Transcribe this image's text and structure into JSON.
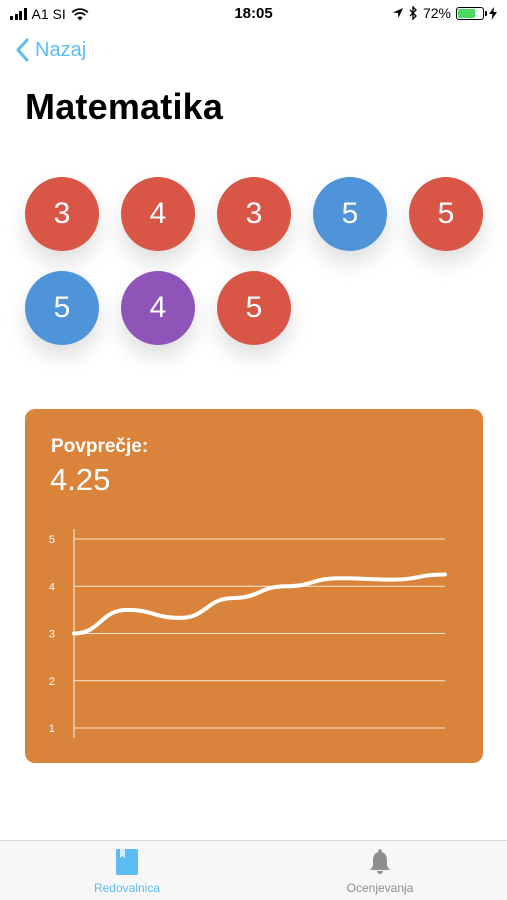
{
  "status_bar": {
    "carrier": "A1 SI",
    "time": "18:05",
    "battery": "72%",
    "battery_level": 0.72,
    "icons": [
      "signal-icon",
      "wifi-icon",
      "location-icon",
      "bluetooth-icon",
      "battery-icon",
      "charging-icon"
    ]
  },
  "nav": {
    "back_label": "Nazaj",
    "back_icon": "chevron-left-icon"
  },
  "page_title": "Matematika",
  "grades": [
    {
      "value": "3",
      "color": "#d95545"
    },
    {
      "value": "4",
      "color": "#d95545"
    },
    {
      "value": "3",
      "color": "#d95545"
    },
    {
      "value": "5",
      "color": "#4f94d9"
    },
    {
      "value": "5",
      "color": "#d95545"
    },
    {
      "value": "5",
      "color": "#4f94d9"
    },
    {
      "value": "4",
      "color": "#8e54b8"
    },
    {
      "value": "5",
      "color": "#d95545"
    }
  ],
  "average": {
    "label": "Povprečje:",
    "value": "4.25",
    "card_color": "#d9843a"
  },
  "chart_data": {
    "type": "line",
    "title": "",
    "xlabel": "",
    "ylabel": "",
    "ylim": [
      1,
      5
    ],
    "yticks": [
      "1",
      "2",
      "3",
      "4",
      "5"
    ],
    "grid": true,
    "series": [
      {
        "values": [
          3.0,
          3.5,
          3.33,
          3.75,
          4.0,
          4.17,
          4.14,
          4.25
        ]
      }
    ]
  },
  "tab_bar": {
    "tabs": [
      {
        "label": "Redovalnica",
        "icon": "book-icon",
        "active": true
      },
      {
        "label": "Ocenjevanja",
        "icon": "bell-icon",
        "active": false
      }
    ],
    "active_color": "#5bbcf2",
    "inactive_color": "#8e8e93"
  }
}
